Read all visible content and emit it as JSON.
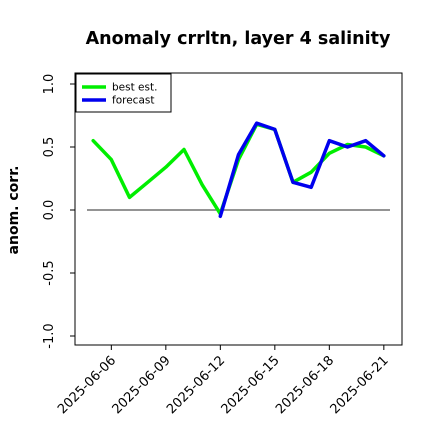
{
  "chart_data": {
    "type": "line",
    "title": "Anomaly crrltn, layer 4 salinity",
    "xlabel": "",
    "ylabel": "anom. corr.",
    "ylim": [
      -1.0,
      1.0
    ],
    "y_ticks": [
      "-1.0",
      "-0.5",
      "0.0",
      "0.5",
      "1.0"
    ],
    "x_ticks": [
      {
        "label": "2025-06-06",
        "day": 6,
        "color": "#000000"
      },
      {
        "label": "2025-06-09",
        "day": 9,
        "color": "#000000"
      },
      {
        "label": "2025-06-12",
        "day": 12,
        "color": "#2e8b22"
      },
      {
        "label": "2025-06-15",
        "day": 15,
        "color": "#000000"
      },
      {
        "label": "2025-06-18",
        "day": 18,
        "color": "#000000"
      },
      {
        "label": "2025-06-21",
        "day": 21,
        "color": "#000000"
      }
    ],
    "xlim": [
      "2025-06-04",
      "2025-06-22"
    ],
    "zero_line": 0.0,
    "grid": false,
    "legend_position": "top-left",
    "series": [
      {
        "name": "best est.",
        "color": "#00ee00",
        "x": [
          "2025-06-05",
          "2025-06-06",
          "2025-06-07",
          "2025-06-08",
          "2025-06-09",
          "2025-06-10",
          "2025-06-11",
          "2025-06-12",
          "2025-06-13",
          "2025-06-14",
          "2025-06-15",
          "2025-06-16",
          "2025-06-17",
          "2025-06-18",
          "2025-06-19",
          "2025-06-20",
          "2025-06-21"
        ],
        "values": [
          0.55,
          0.4,
          0.1,
          0.22,
          0.34,
          0.48,
          0.2,
          -0.03,
          0.4,
          0.68,
          0.64,
          0.22,
          0.3,
          0.45,
          0.52,
          0.5,
          0.43
        ]
      },
      {
        "name": "forecast",
        "color": "#0000ee",
        "x": [
          "2025-06-12",
          "2025-06-13",
          "2025-06-14",
          "2025-06-15",
          "2025-06-16",
          "2025-06-17",
          "2025-06-18",
          "2025-06-19",
          "2025-06-20",
          "2025-06-21"
        ],
        "values": [
          -0.05,
          0.44,
          0.69,
          0.64,
          0.22,
          0.18,
          0.55,
          0.5,
          0.55,
          0.43
        ]
      }
    ]
  },
  "colors": {
    "best_est": "#00ee00",
    "forecast": "#0000ee",
    "zero_line": "#555555",
    "frame": "#000000",
    "highlight_tick": "#2e8b22"
  }
}
